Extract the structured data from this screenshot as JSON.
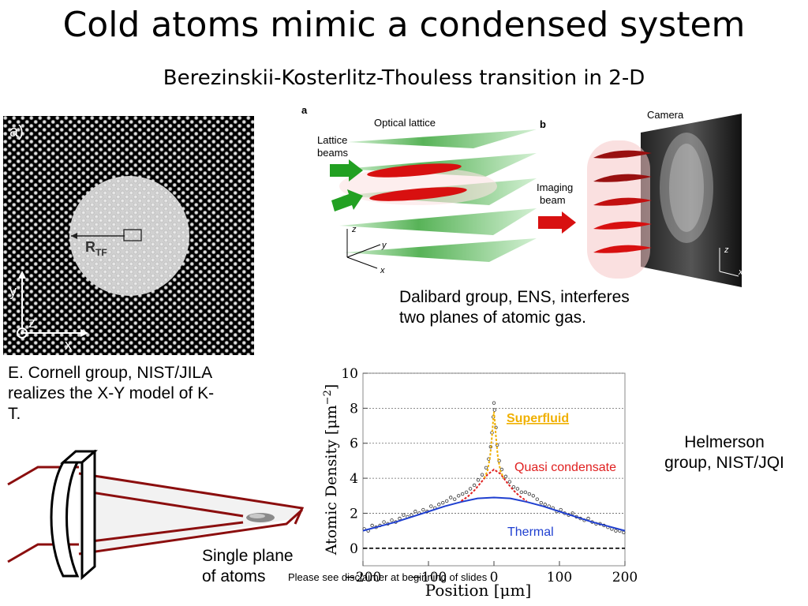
{
  "slide": {
    "title": "Cold atoms mimic a condensed system",
    "subtitle": "Berezinskii-Kosterlitz-Thouless transition in 2-D",
    "disclaimer": "Please see disclaimer at beginning of slides"
  },
  "lattice_image": {
    "panel_label": "a)",
    "radius_label": "R",
    "radius_subscript": "TF",
    "axis_y": "y",
    "axis_z": "z",
    "axis_x": "x"
  },
  "dalibard_figure": {
    "panel_a": "a",
    "panel_b": "b",
    "optical_lattice": "Optical lattice",
    "lattice_beams_1": "Lattice",
    "lattice_beams_2": "beams",
    "imaging_beam_1": "Imaging",
    "imaging_beam_2": "beam",
    "camera": "Camera",
    "axis_z": "z",
    "axis_y": "y",
    "axis_x": "x",
    "axis_z2": "z",
    "axis_x2": "x"
  },
  "captions": {
    "dalibard_1": "Dalibard group, ENS, interferes",
    "dalibard_2": "two planes of atomic gas.",
    "cornell_1": "E. Cornell group, NIST/JILA",
    "cornell_2": "realizes the X-Y model of K-",
    "cornell_3": "T.",
    "helmerson_1": "Helmerson",
    "helmerson_2": "group, NIST/JQI",
    "plane_1": "Single plane",
    "plane_2": "of atoms"
  },
  "chart_data": {
    "type": "line",
    "xlabel": "Position [μm]",
    "ylabel": "Atomic Density [μm",
    "ylabel_exp": "−2",
    "ylabel_close": "]",
    "xlim": [
      -200,
      200
    ],
    "ylim": [
      -1,
      10
    ],
    "xticks": [
      -200,
      -100,
      0,
      100,
      200
    ],
    "yticks": [
      0,
      2,
      4,
      6,
      8,
      10
    ],
    "grid": true,
    "annotations": [
      "Superfluid",
      "Quasi condensate",
      "Thermal"
    ],
    "colors": {
      "superfluid": "#f0b000",
      "quasi": "#e02020",
      "thermal": "#1f3fd0",
      "baseline": "#000000"
    },
    "series": [
      {
        "key": "thermal",
        "x": [
          -200,
          -175,
          -150,
          -125,
          -100,
          -75,
          -50,
          -25,
          0,
          25,
          50,
          75,
          100,
          125,
          150,
          175,
          200
        ],
        "values": [
          1.0,
          1.25,
          1.5,
          1.8,
          2.1,
          2.4,
          2.65,
          2.85,
          2.9,
          2.85,
          2.65,
          2.4,
          2.1,
          1.8,
          1.5,
          1.25,
          1.0
        ]
      },
      {
        "key": "quasi",
        "x": [
          -50,
          -40,
          -30,
          -20,
          -10,
          0,
          10,
          20,
          30,
          40,
          50
        ],
        "values": [
          2.7,
          2.95,
          3.3,
          3.75,
          4.2,
          4.5,
          4.25,
          3.75,
          3.3,
          2.95,
          2.7
        ]
      },
      {
        "key": "superfluid",
        "x": [
          -15,
          -10,
          -6,
          -3,
          -1,
          0,
          1,
          3,
          6,
          10,
          15
        ],
        "values": [
          4.0,
          4.4,
          5.2,
          6.4,
          7.4,
          7.8,
          7.4,
          6.4,
          5.2,
          4.4,
          4.0
        ]
      }
    ],
    "scatter": [
      [
        -198,
        1.1
      ],
      [
        -192,
        1.0
      ],
      [
        -186,
        1.3
      ],
      [
        -180,
        1.2
      ],
      [
        -174,
        1.3
      ],
      [
        -168,
        1.5
      ],
      [
        -162,
        1.4
      ],
      [
        -156,
        1.6
      ],
      [
        -150,
        1.5
      ],
      [
        -144,
        1.7
      ],
      [
        -138,
        1.9
      ],
      [
        -132,
        1.8
      ],
      [
        -126,
        1.9
      ],
      [
        -120,
        2.1
      ],
      [
        -114,
        2.0
      ],
      [
        -108,
        2.2
      ],
      [
        -102,
        2.1
      ],
      [
        -96,
        2.4
      ],
      [
        -90,
        2.3
      ],
      [
        -84,
        2.5
      ],
      [
        -78,
        2.6
      ],
      [
        -72,
        2.7
      ],
      [
        -66,
        2.9
      ],
      [
        -60,
        2.8
      ],
      [
        -54,
        3.0
      ],
      [
        -48,
        3.1
      ],
      [
        -42,
        3.2
      ],
      [
        -36,
        3.4
      ],
      [
        -30,
        3.6
      ],
      [
        -24,
        3.9
      ],
      [
        -18,
        4.2
      ],
      [
        -12,
        4.6
      ],
      [
        -8,
        5.1
      ],
      [
        -5,
        5.8
      ],
      [
        -3,
        6.6
      ],
      [
        -1,
        7.5
      ],
      [
        0,
        8.3
      ],
      [
        1,
        7.9
      ],
      [
        3,
        6.9
      ],
      [
        5,
        5.9
      ],
      [
        8,
        5.0
      ],
      [
        12,
        4.5
      ],
      [
        18,
        4.1
      ],
      [
        24,
        3.8
      ],
      [
        30,
        3.5
      ],
      [
        36,
        3.4
      ],
      [
        42,
        3.2
      ],
      [
        48,
        3.2
      ],
      [
        54,
        3.1
      ],
      [
        60,
        3.0
      ],
      [
        66,
        2.8
      ],
      [
        72,
        2.6
      ],
      [
        78,
        2.5
      ],
      [
        84,
        2.4
      ],
      [
        90,
        2.3
      ],
      [
        96,
        2.1
      ],
      [
        102,
        2.2
      ],
      [
        108,
        2.0
      ],
      [
        114,
        1.9
      ],
      [
        120,
        2.0
      ],
      [
        126,
        1.8
      ],
      [
        132,
        1.7
      ],
      [
        138,
        1.6
      ],
      [
        144,
        1.7
      ],
      [
        150,
        1.5
      ],
      [
        156,
        1.4
      ],
      [
        162,
        1.4
      ],
      [
        168,
        1.3
      ],
      [
        174,
        1.2
      ],
      [
        180,
        1.1
      ],
      [
        186,
        1.0
      ],
      [
        192,
        1.0
      ],
      [
        198,
        0.9
      ]
    ]
  }
}
